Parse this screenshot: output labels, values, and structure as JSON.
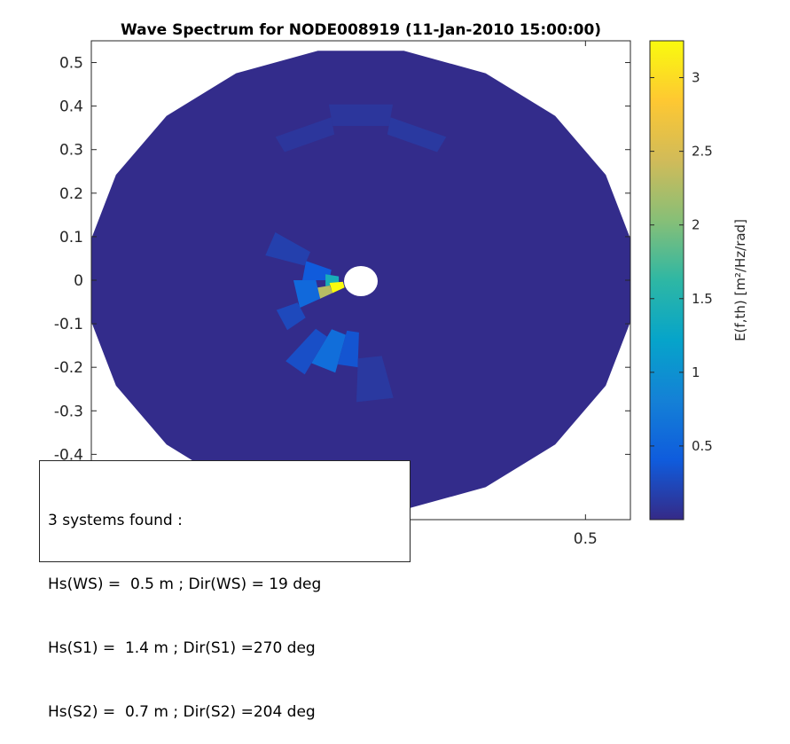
{
  "chart_data": {
    "type": "heatmap",
    "title": "Wave Spectrum for NODE008919 (11-Jan-2010 15:00:00)",
    "xlim": [
      -0.6,
      0.6
    ],
    "ylim": [
      -0.55,
      0.55
    ],
    "y_ticks": [
      "0.5",
      "0.4",
      "0.3",
      "0.2",
      "0.1",
      "0",
      "-0.1",
      "-0.2",
      "-0.3",
      "-0.4"
    ],
    "x_ticks": [
      "0.5"
    ],
    "colorbar": {
      "label": "E(f,th) [m²/Hz/rad]",
      "range": [
        0,
        3.25
      ],
      "ticks": [
        "0.5",
        "1",
        "1.5",
        "2",
        "2.5",
        "3"
      ],
      "colormap": "parula"
    },
    "background_level": 0.02,
    "energy_patches": [
      {
        "theta_from_deg": 60,
        "theta_to_deg": 80,
        "r_from": 0.34,
        "r_to": 0.38,
        "value": 0.12
      },
      {
        "theta_from_deg": 80,
        "theta_to_deg": 100,
        "r_from": 0.36,
        "r_to": 0.41,
        "value": 0.1
      },
      {
        "theta_from_deg": 100,
        "theta_to_deg": 120,
        "r_from": 0.34,
        "r_to": 0.38,
        "value": 0.1
      },
      {
        "theta_from_deg": 160,
        "theta_to_deg": 180,
        "r_from": 0.07,
        "r_to": 0.13,
        "value": 0.4
      },
      {
        "theta_from_deg": 170,
        "theta_to_deg": 190,
        "r_from": 0.05,
        "r_to": 0.08,
        "value": 1.4
      },
      {
        "theta_from_deg": 185,
        "theta_to_deg": 205,
        "r_from": 0.04,
        "r_to": 0.07,
        "value": 3.25
      },
      {
        "theta_from_deg": 190,
        "theta_to_deg": 205,
        "r_from": 0.07,
        "r_to": 0.1,
        "value": 2.3
      },
      {
        "theta_from_deg": 180,
        "theta_to_deg": 205,
        "r_from": 0.1,
        "r_to": 0.15,
        "value": 0.55
      },
      {
        "theta_from_deg": 150,
        "theta_to_deg": 165,
        "r_from": 0.13,
        "r_to": 0.22,
        "value": 0.18
      },
      {
        "theta_from_deg": 200,
        "theta_to_deg": 215,
        "r_from": 0.15,
        "r_to": 0.2,
        "value": 0.25
      },
      {
        "theta_from_deg": 240,
        "theta_to_deg": 255,
        "r_from": 0.13,
        "r_to": 0.22,
        "value": 0.6
      },
      {
        "theta_from_deg": 255,
        "theta_to_deg": 268,
        "r_from": 0.12,
        "r_to": 0.2,
        "value": 0.35
      },
      {
        "theta_from_deg": 228,
        "theta_to_deg": 240,
        "r_from": 0.15,
        "r_to": 0.25,
        "value": 0.3
      },
      {
        "theta_from_deg": 268,
        "theta_to_deg": 285,
        "r_from": 0.18,
        "r_to": 0.28,
        "value": 0.12
      }
    ],
    "annotation": {
      "lines": [
        "3 systems found :",
        "Hs(WS) =  0.5 m ; Dir(WS) = 19 deg",
        "Hs(S1) =  1.4 m ; Dir(S1) =270 deg",
        "Hs(S2) =  0.7 m ; Dir(S2) =204 deg"
      ]
    }
  }
}
